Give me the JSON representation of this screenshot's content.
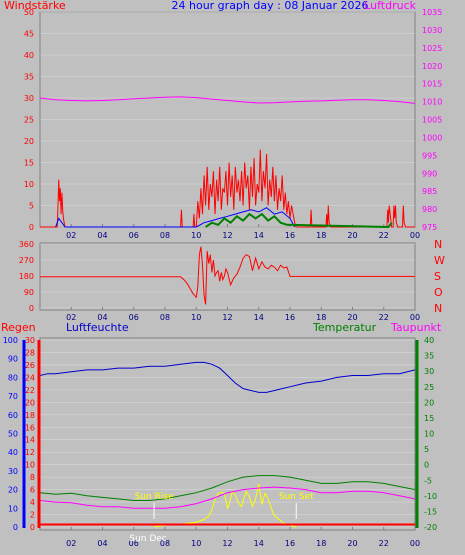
{
  "header": {
    "title": "24 hour graph day : 08 Januar 2026",
    "left_label": "Windstärke",
    "right_label": "Luftdruck"
  },
  "colors": {
    "background": "#c0c0c0",
    "wind": "#ff0000",
    "gust": "#ff0000",
    "wind_avg": "#0000ff",
    "wind_min": "#008000",
    "pressure": "#ff00ff",
    "direction": "#ff0000",
    "humidity": "#0000cc",
    "temperature": "#008000",
    "dewpoint": "#ff00ff",
    "rain": "#ff0000",
    "solar": "#ffff00",
    "hum_axis": "#0000ff",
    "rain_axis": "#ff0000",
    "temp_axis": "#008000"
  },
  "x_ticks": [
    "02",
    "04",
    "06",
    "08",
    "10",
    "12",
    "14",
    "16",
    "18",
    "20",
    "22",
    "00"
  ],
  "chart_data": [
    {
      "id": "wind",
      "type": "line",
      "ylim_left": [
        0,
        50
      ],
      "yticks_left": [
        "50",
        "45",
        "40",
        "35",
        "30",
        "25",
        "20",
        "15",
        "10",
        "5",
        "0"
      ],
      "ylim_right": [
        975,
        1035
      ],
      "yticks_right": [
        "1035",
        "1030",
        "1025",
        "1020",
        "1015",
        "1010",
        "1005",
        "1000",
        "995",
        "990",
        "985",
        "980",
        "975"
      ],
      "series": [
        {
          "key": "gust",
          "x": [
            0,
            0.8,
            1.1,
            1.15,
            1.2,
            1.25,
            1.3,
            1.35,
            1.4,
            1.45,
            1.5,
            1.6,
            1.7,
            2.5,
            9.0,
            9.05,
            9.1,
            9.2,
            9.8,
            9.85,
            9.9,
            10.0,
            10.1,
            10.2,
            10.3,
            10.4,
            10.5,
            10.6,
            10.7,
            10.8,
            10.9,
            11.0,
            11.1,
            11.2,
            11.3,
            11.4,
            11.5,
            11.6,
            11.7,
            11.8,
            11.9,
            12.0,
            12.1,
            12.2,
            12.3,
            12.4,
            12.5,
            12.6,
            12.7,
            12.8,
            12.9,
            13.0,
            13.1,
            13.2,
            13.3,
            13.4,
            13.5,
            13.6,
            13.7,
            13.8,
            13.9,
            14.0,
            14.1,
            14.2,
            14.3,
            14.4,
            14.5,
            14.6,
            14.7,
            14.8,
            14.9,
            15.0,
            15.1,
            15.2,
            15.3,
            15.4,
            15.5,
            15.6,
            15.7,
            15.8,
            15.9,
            16.0,
            16.1,
            16.2,
            16.3,
            16.4,
            16.5,
            17.3,
            17.35,
            17.4,
            17.5,
            18.3,
            18.35,
            18.4,
            18.45,
            18.5,
            18.6,
            22.2,
            22.25,
            22.3,
            22.35,
            22.5,
            22.6,
            22.65,
            22.7,
            22.75,
            22.8,
            22.9,
            23.2,
            23.25,
            23.3,
            23.4,
            24.0
          ],
          "values": [
            0,
            0,
            0,
            5,
            11,
            6,
            9,
            3,
            8,
            4,
            2,
            0,
            0,
            0,
            0,
            4,
            0,
            0,
            0,
            3,
            0,
            0,
            6,
            2,
            9,
            3,
            12,
            5,
            14,
            4,
            10,
            7,
            13,
            3,
            11,
            6,
            14,
            4,
            9,
            8,
            13,
            5,
            15,
            7,
            12,
            4,
            14,
            8,
            11,
            6,
            13,
            5,
            15,
            9,
            12,
            4,
            14,
            7,
            16,
            5,
            10,
            8,
            18,
            6,
            13,
            9,
            17,
            5,
            11,
            7,
            14,
            6,
            12,
            4,
            9,
            6,
            12,
            4,
            8,
            3,
            6,
            2,
            5,
            3,
            1,
            0,
            0,
            0,
            4,
            0,
            0,
            0,
            3,
            0,
            5,
            1,
            0,
            0,
            4,
            1,
            5,
            0,
            0,
            5,
            2,
            5,
            1,
            0,
            0,
            5,
            1,
            0,
            0
          ]
        },
        {
          "key": "avg",
          "x": [
            1.0,
            1.2,
            1.4,
            1.6,
            10.0,
            10.5,
            11.0,
            11.5,
            12.0,
            12.5,
            13.0,
            13.5,
            14.0,
            14.5,
            15.0,
            15.5,
            16.0,
            16.3
          ],
          "values": [
            0,
            2,
            1,
            0,
            0,
            1,
            1.5,
            2,
            2.5,
            3,
            3.5,
            4,
            3.5,
            4.5,
            3,
            3.5,
            2,
            0
          ]
        },
        {
          "key": "min",
          "x": [
            10.6,
            11.0,
            11.4,
            11.8,
            12.2,
            12.6,
            13.0,
            13.4,
            13.8,
            14.2,
            14.6,
            15.0,
            15.4,
            15.8,
            22.3,
            22.5
          ],
          "values": [
            0,
            1,
            0.5,
            2,
            1,
            2.5,
            1.5,
            3,
            2,
            3,
            1.5,
            2.5,
            1,
            0.5,
            0,
            1
          ]
        },
        {
          "key": "pressure",
          "x": [
            0,
            1,
            2,
            3,
            4,
            5,
            6,
            7,
            8,
            9,
            10,
            11,
            12,
            13,
            14,
            15,
            16,
            17,
            18,
            19,
            20,
            21,
            22,
            23,
            24
          ],
          "values": [
            1011,
            1010.5,
            1010.3,
            1010.2,
            1010.3,
            1010.5,
            1010.8,
            1011,
            1011.2,
            1011.3,
            1011.1,
            1010.7,
            1010.3,
            1009.9,
            1009.6,
            1009.7,
            1009.9,
            1010.1,
            1010.2,
            1010.4,
            1010.5,
            1010.5,
            1010.3,
            1010,
            1009.5
          ]
        }
      ]
    },
    {
      "id": "direction",
      "type": "line",
      "ylim": [
        0,
        360
      ],
      "yticks": [
        "360",
        "270",
        "180",
        "90",
        "0"
      ],
      "right_labels": [
        "N",
        "W",
        "S",
        "O",
        "N"
      ],
      "x": [
        0,
        8.5,
        9.0,
        9.2,
        9.4,
        9.6,
        9.8,
        10.0,
        10.1,
        10.2,
        10.3,
        10.4,
        10.5,
        10.6,
        10.7,
        10.8,
        10.9,
        11.0,
        11.1,
        11.2,
        11.3,
        11.4,
        11.5,
        11.6,
        11.7,
        11.8,
        11.9,
        12.0,
        12.2,
        12.4,
        12.6,
        12.8,
        13.0,
        13.2,
        13.4,
        13.6,
        13.8,
        14.0,
        14.2,
        14.4,
        14.6,
        14.8,
        15.0,
        15.2,
        15.4,
        15.6,
        15.8,
        16.0,
        24.0
      ],
      "values": [
        176,
        176,
        176,
        160,
        140,
        110,
        80,
        60,
        120,
        300,
        345,
        240,
        70,
        20,
        320,
        250,
        300,
        200,
        270,
        180,
        200,
        210,
        150,
        200,
        160,
        180,
        220,
        200,
        130,
        170,
        190,
        230,
        280,
        300,
        290,
        210,
        280,
        220,
        260,
        230,
        220,
        240,
        230,
        210,
        240,
        225,
        230,
        178,
        178
      ]
    },
    {
      "id": "weather",
      "type": "line",
      "left_label_rain": "Regen",
      "left_label_humidity": "Luftfeuchte",
      "right_label_temperature": "Temperatur",
      "right_label_dewpoint": "Taupunkt",
      "ylim_humidity": [
        0,
        100
      ],
      "yticks_humidity": [
        "100",
        "90",
        "80",
        "70",
        "60",
        "50",
        "40",
        "30",
        "20",
        "10",
        "0"
      ],
      "ylim_rain": [
        0,
        30
      ],
      "yticks_rain": [
        "30",
        "28",
        "26",
        "24",
        "22",
        "20",
        "18",
        "16",
        "14",
        "12",
        "10",
        "8",
        "6",
        "4",
        "2",
        "0"
      ],
      "ylim_temperature": [
        -20,
        40
      ],
      "yticks_temperature": [
        "40",
        "35",
        "30",
        "25",
        "20",
        "15",
        "10",
        "5",
        "0",
        "-5",
        "-10",
        "-15",
        "-20"
      ],
      "sunrise_label": "Sun Rise",
      "sunrise_x": 7.3,
      "sunrise_value": 150,
      "sunset_label": "Sun Set",
      "sunset_x": 16.4,
      "sunset_value": 150,
      "sundec_label": "Sun Dec",
      "sundec_x": 7.3,
      "series": [
        {
          "key": "humidity",
          "x": [
            0,
            0.5,
            1,
            2,
            3,
            4,
            5,
            6,
            7,
            8,
            9,
            10,
            10.5,
            11,
            11.5,
            12,
            12.5,
            13,
            13.5,
            14,
            14.5,
            15,
            15.5,
            16,
            16.5,
            17,
            18,
            19,
            20,
            21,
            22,
            23,
            24
          ],
          "values": [
            81,
            82,
            82,
            83,
            84,
            84,
            85,
            85,
            86,
            86,
            87,
            88,
            88,
            87,
            85,
            81,
            77,
            74,
            73,
            72,
            72,
            73,
            74,
            75,
            76,
            77,
            78,
            80,
            81,
            81,
            82,
            82,
            84
          ]
        },
        {
          "key": "temperature",
          "x": [
            0,
            1,
            2,
            3,
            4,
            5,
            6,
            7,
            8,
            9,
            10,
            11,
            12,
            13,
            14,
            15,
            16,
            17,
            18,
            19,
            20,
            21,
            22,
            23,
            24
          ],
          "values": [
            -9,
            -9.5,
            -9.2,
            -10,
            -10.5,
            -11,
            -11.5,
            -11.5,
            -11,
            -10,
            -9,
            -7.5,
            -5.5,
            -4,
            -3.5,
            -3.5,
            -4,
            -5,
            -6,
            -6,
            -5.5,
            -5.5,
            -6,
            -7,
            -8
          ]
        },
        {
          "key": "dewpoint",
          "x": [
            0,
            1,
            2,
            3,
            4,
            5,
            6,
            7,
            8,
            9,
            10,
            11,
            12,
            13,
            14,
            15,
            16,
            17,
            18,
            19,
            20,
            21,
            22,
            23,
            24
          ],
          "values": [
            -11.5,
            -12,
            -12.2,
            -13,
            -13.5,
            -13.5,
            -14,
            -14,
            -14,
            -13.5,
            -12.5,
            -11,
            -9,
            -8,
            -7.5,
            -7.2,
            -7.5,
            -8,
            -9,
            -9,
            -8.5,
            -8.5,
            -9,
            -10,
            -11
          ]
        },
        {
          "key": "rain",
          "x": [
            0,
            24
          ],
          "values": [
            0.4,
            0.4
          ]
        },
        {
          "key": "solar",
          "x": [
            7.3,
            7.6,
            8.0,
            9.0,
            10.0,
            10.5,
            10.8,
            11.0,
            11.2,
            11.4,
            11.6,
            11.8,
            12.0,
            12.1,
            12.3,
            12.5,
            12.7,
            12.9,
            13.0,
            13.2,
            13.4,
            13.6,
            13.8,
            14.0,
            14.2,
            14.4,
            14.6,
            14.8,
            15.0,
            15.3,
            15.6,
            16.0,
            16.4
          ],
          "values": [
            0,
            5,
            10,
            15,
            25,
            40,
            60,
            90,
            150,
            180,
            185,
            180,
            100,
            120,
            190,
            170,
            130,
            110,
            140,
            190,
            160,
            110,
            150,
            230,
            120,
            180,
            150,
            100,
            60,
            40,
            20,
            10,
            0
          ]
        }
      ]
    }
  ]
}
